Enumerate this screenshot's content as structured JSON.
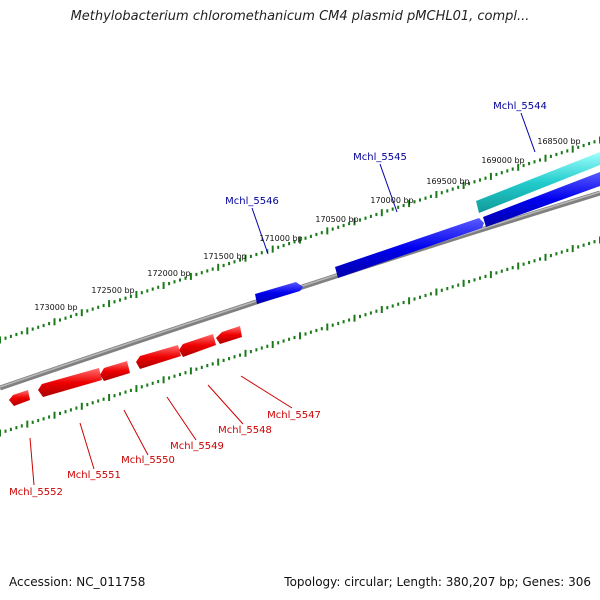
{
  "title": "Methylobacterium chloromethanicum CM4 plasmid pMCHL01, compl...",
  "footer": {
    "accession": "Accession: NC_011758",
    "stats": "Topology: circular; Length: 380,207 bp; Genes: 306"
  },
  "colors": {
    "backbone": "#808080",
    "tick": "#1a7a1a",
    "forward_gene": "#0000ee",
    "reverse_gene": "#ee0000",
    "highlight_gene": "#22cccc",
    "forward_label": "#00009a",
    "reverse_label": "#cc0000"
  },
  "ticks": [
    "168500 bp",
    "169000 bp",
    "169500 bp",
    "170000 bp",
    "170500 bp",
    "171000 bp",
    "171500 bp",
    "172000 bp",
    "172500 bp",
    "173000 bp"
  ],
  "forward_genes": [
    "Mchl_5544",
    "Mchl_5545",
    "Mchl_5546"
  ],
  "reverse_genes": [
    "Mchl_5547",
    "Mchl_5548",
    "Mchl_5549",
    "Mchl_5550",
    "Mchl_5551",
    "Mchl_5552"
  ]
}
